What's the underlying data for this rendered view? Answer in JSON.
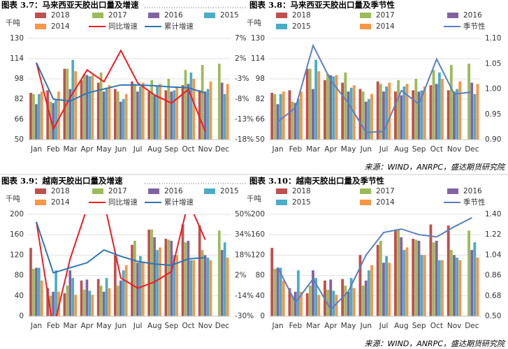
{
  "chart_data": [
    {
      "type": "bar-line",
      "title": "图表 3.7：马来西亚天胶出口量及增速",
      "y_label": "千吨",
      "categories": [
        "Jan",
        "Feb",
        "Mar",
        "Apr",
        "May",
        "Jun",
        "Jul",
        "Aug",
        "Sep",
        "Oct",
        "Nov",
        "Dec"
      ],
      "ylim": [
        50,
        130
      ],
      "yticks": [
        50,
        66,
        82,
        98,
        114,
        130
      ],
      "y2lim": [
        -18,
        7
      ],
      "y2ticks": [
        {
          "value": -18,
          "label": "-18%"
        },
        {
          "value": -13,
          "label": "-13%"
        },
        {
          "value": -8,
          "label": "-8%"
        },
        {
          "value": -3,
          "label": "-3%"
        },
        {
          "value": 2,
          "label": "2%"
        },
        {
          "value": 7,
          "label": "7%"
        }
      ],
      "grid": true,
      "series": [
        {
          "name": "2018",
          "color": "#c0504d",
          "values": [
            87,
            89,
            106,
            97,
            95,
            90,
            96,
            88,
            89,
            93,
            89,
            null
          ]
        },
        {
          "name": "2017",
          "color": "#9bbb59",
          "values": [
            86,
            80,
            106,
            102,
            103,
            88,
            94,
            97,
            98,
            105,
            109,
            110
          ]
        },
        {
          "name": "2016",
          "color": "#8064a2",
          "values": [
            78,
            79,
            90,
            101,
            88,
            80,
            88,
            85,
            88,
            94,
            88,
            95
          ]
        },
        {
          "name": "2015",
          "color": "#4bacc6",
          "values": [
            86,
            82,
            113,
            100,
            91,
            82,
            92,
            92,
            89,
            103,
            90,
            86
          ]
        },
        {
          "name": "2014",
          "color": "#f79646",
          "values": [
            88,
            88,
            104,
            101,
            93,
            86,
            95,
            94,
            92,
            98,
            96,
            94
          ]
        },
        {
          "name": "同比增速",
          "type": "line",
          "axis": "y2",
          "color": "#ee1c25",
          "values": [
            1,
            -15.4,
            -7.6,
            -0.8,
            -3.7,
            4,
            -4,
            -7,
            -9,
            -5.6,
            -16,
            null
          ]
        },
        {
          "name": "累计增速",
          "type": "line",
          "axis": "y2",
          "color": "#2e75b6",
          "values": [
            1,
            -8,
            -8.5,
            -6.5,
            -5.5,
            -4.5,
            -4.5,
            -4.7,
            -5,
            -5.2,
            -6.5,
            null
          ]
        }
      ]
    },
    {
      "type": "bar-line",
      "title": "图表 3.8：马来西亚天胶出口量及季节性",
      "y_label": "千吨",
      "categories": [
        "Jan",
        "Feb",
        "Mar",
        "Apr",
        "May",
        "Jun",
        "Jul",
        "Aug",
        "Sep",
        "Oct",
        "Nov",
        "Dec"
      ],
      "ylim": [
        50,
        130
      ],
      "yticks": [
        50,
        66,
        82,
        98,
        114,
        130
      ],
      "y2lim": [
        0.9,
        1.1
      ],
      "y2ticks": [
        {
          "value": 0.9,
          "label": "0.90"
        },
        0.95,
        {
          "value": 1,
          "label": "1.00"
        },
        1.05,
        {
          "value": 1.1,
          "label": "1.10"
        }
      ],
      "grid": true,
      "series": [
        {
          "name": "2018",
          "color": "#c0504d",
          "values": [
            87,
            89,
            106,
            97,
            95,
            90,
            96,
            88,
            89,
            93,
            89,
            null
          ]
        },
        {
          "name": "2017",
          "color": "#9bbb59",
          "values": [
            86,
            80,
            106,
            102,
            103,
            88,
            94,
            97,
            98,
            105,
            109,
            110
          ]
        },
        {
          "name": "2016",
          "color": "#8064a2",
          "values": [
            78,
            79,
            90,
            101,
            88,
            80,
            88,
            85,
            88,
            94,
            88,
            95
          ]
        },
        {
          "name": "2015",
          "color": "#4bacc6",
          "values": [
            86,
            82,
            113,
            100,
            91,
            82,
            92,
            92,
            89,
            103,
            90,
            86
          ]
        },
        {
          "name": "2014",
          "color": "#f79646",
          "values": [
            88,
            88,
            104,
            101,
            93,
            86,
            95,
            94,
            92,
            98,
            96,
            94
          ]
        },
        {
          "name": "季节性",
          "type": "line",
          "axis": "y2",
          "color": "#5b7fbf",
          "values": [
            0.935,
            0.963,
            1.086,
            1.017,
            0.972,
            0.914,
            0.916,
            0.997,
            0.97,
            1.059,
            0.99,
            0.994
          ]
        }
      ],
      "source": "来源：WIND，ANRPC，盛达期货研究院"
    },
    {
      "type": "bar-line",
      "title": "图表 3.9：越南天胶出口量及增速",
      "y_label": "千吨",
      "categories": [
        "Jan",
        "Feb",
        "Mar",
        "Apr",
        "May",
        "Jun",
        "Jul",
        "Aug",
        "Sep",
        "Oct",
        "Nov",
        "Dec"
      ],
      "ylim": [
        0,
        200
      ],
      "yticks": [
        0,
        40,
        80,
        120,
        160,
        200
      ],
      "y2lim": [
        -30,
        50
      ],
      "y2ticks": [
        {
          "value": -30,
          "label": "-30%"
        },
        {
          "value": -14,
          "label": "-14%"
        },
        {
          "value": 2,
          "label": "2%"
        },
        {
          "value": 18,
          "label": "18%"
        },
        {
          "value": 34,
          "label": "34%"
        },
        {
          "value": 50,
          "label": "50%"
        }
      ],
      "grid": true,
      "series": [
        {
          "name": "2018",
          "color": "#c0504d",
          "values": [
            134,
            55,
            45,
            70,
            73,
            120,
            140,
            170,
            152,
            180,
            178,
            null
          ]
        },
        {
          "name": "2017",
          "color": "#9bbb59",
          "values": [
            93,
            40,
            60,
            52,
            60,
            60,
            148,
            170,
            150,
            145,
            130,
            168
          ]
        },
        {
          "name": "2016",
          "color": "#8064a2",
          "values": [
            95,
            48,
            90,
            72,
            48,
            70,
            105,
            155,
            148,
            148,
            120,
            130
          ]
        },
        {
          "name": "2015",
          "color": "#4bacc6",
          "values": [
            95,
            90,
            75,
            50,
            75,
            90,
            118,
            130,
            120,
            110,
            115,
            145
          ]
        },
        {
          "name": "2014",
          "color": "#f79646",
          "values": [
            70,
            48,
            42,
            42,
            55,
            100,
            105,
            135,
            120,
            110,
            110,
            115
          ]
        },
        {
          "name": "同比增速",
          "type": "line",
          "axis": "y2",
          "color": "#ee1c25",
          "values": [
            44,
            -40,
            15,
            55,
            60,
            0,
            -8,
            -3,
            5,
            60,
            30,
            null
          ]
        },
        {
          "name": "累计增速",
          "type": "line",
          "axis": "y2",
          "color": "#2e75b6",
          "values": [
            44,
            4,
            8,
            12,
            22,
            17,
            13,
            11,
            10,
            15,
            16,
            null
          ]
        }
      ]
    },
    {
      "type": "bar-line",
      "title": "图表 3.10：越南天胶出口量及季节性",
      "y_label": "千吨",
      "categories": [
        "Jan",
        "Feb",
        "Mar",
        "Apr",
        "May",
        "Jun",
        "Jul",
        "Aug",
        "Sep",
        "Oct",
        "Nov",
        "Dec"
      ],
      "ylim": [
        0,
        200
      ],
      "yticks": [
        0,
        40,
        80,
        120,
        160,
        200
      ],
      "y2lim": [
        0.5,
        1.4
      ],
      "y2ticks": [
        {
          "value": 0.5,
          "label": "0.50"
        },
        0.68,
        0.86,
        1.04,
        1.22,
        {
          "value": 1.4,
          "label": "1.40"
        }
      ],
      "grid": true,
      "series": [
        {
          "name": "2018",
          "color": "#c0504d",
          "values": [
            134,
            55,
            45,
            70,
            73,
            120,
            140,
            170,
            152,
            180,
            178,
            null
          ]
        },
        {
          "name": "2017",
          "color": "#9bbb59",
          "values": [
            93,
            40,
            60,
            52,
            60,
            60,
            148,
            170,
            150,
            145,
            130,
            168
          ]
        },
        {
          "name": "2016",
          "color": "#8064a2",
          "values": [
            95,
            48,
            90,
            72,
            48,
            70,
            105,
            155,
            148,
            148,
            120,
            130
          ]
        },
        {
          "name": "2015",
          "color": "#4bacc6",
          "values": [
            95,
            90,
            75,
            50,
            75,
            90,
            118,
            130,
            120,
            110,
            115,
            145
          ]
        },
        {
          "name": "2014",
          "color": "#f79646",
          "values": [
            70,
            48,
            42,
            42,
            55,
            100,
            105,
            135,
            120,
            110,
            110,
            115
          ]
        },
        {
          "name": "季节性",
          "type": "line",
          "axis": "y2",
          "color": "#5b7fbf",
          "values": [
            0.93,
            0.62,
            0.83,
            0.56,
            0.72,
            1.04,
            1.24,
            1.27,
            1.22,
            1.2,
            1.29,
            1.37
          ]
        }
      ],
      "source": "来源：WIND，ANRPC，盛达期货研究院"
    }
  ]
}
